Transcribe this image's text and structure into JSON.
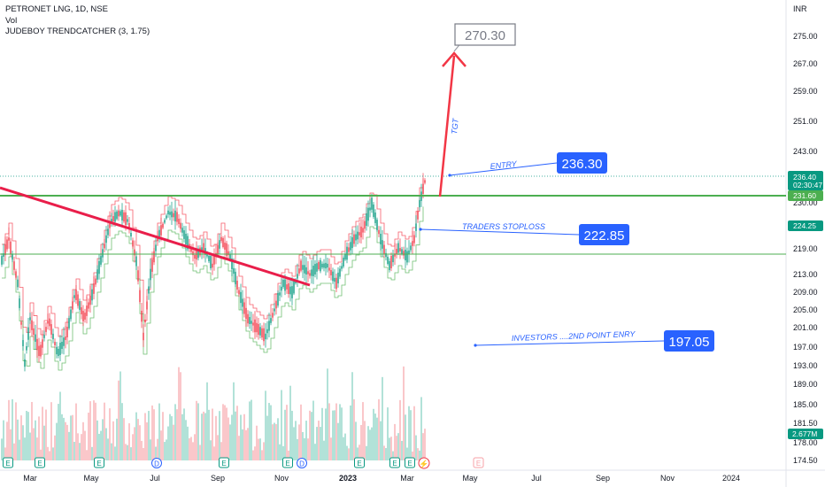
{
  "legend": {
    "symbol": "PETRONET LNG, 1D, NSE",
    "volume": "Vol",
    "indicator": "JUDEBOY TRENDCATCHER (3, 1.75)"
  },
  "currency": "INR",
  "price_axis": {
    "ticks": [
      "275.00",
      "267.00",
      "259.00",
      "251.00",
      "243.00",
      "230.00",
      "219.00",
      "213.00",
      "209.00",
      "205.00",
      "201.00",
      "197.00",
      "193.00",
      "189.00",
      "185.00",
      "181.50",
      "178.00",
      "174.50"
    ],
    "last_price": "236.40",
    "countdown": "02:30:47",
    "green_line_price": "231.60",
    "trailing_stop_price": "224.25",
    "volume_value": "2.677M"
  },
  "time_axis": {
    "labels": [
      "Mar",
      "May",
      "Jul",
      "Sep",
      "Nov",
      "2023",
      "Mar",
      "May",
      "Jul",
      "Sep",
      "Nov",
      "2024"
    ],
    "bold_label": "2023"
  },
  "event_markers": [
    "E",
    "E",
    "E",
    "D",
    "E",
    "E",
    "D",
    "E",
    "E",
    "E"
  ],
  "annotations": {
    "target_value": "270.30",
    "target_label": "TGT",
    "entry_label": "ENTRY",
    "entry_value": "236.30",
    "stoploss_label": "TRADERS STOPLOSS",
    "stoploss_value": "222.85",
    "investors_label": "INVESTORS ....2ND POINT ENRY",
    "investors_value": "197.05"
  },
  "colors": {
    "up": "#089981",
    "down": "#f23645",
    "blue_box": "#2962ff",
    "trend_line": "#e91e4a",
    "horizontal_line": "#4caf50",
    "target_arrow": "#f23645"
  }
}
